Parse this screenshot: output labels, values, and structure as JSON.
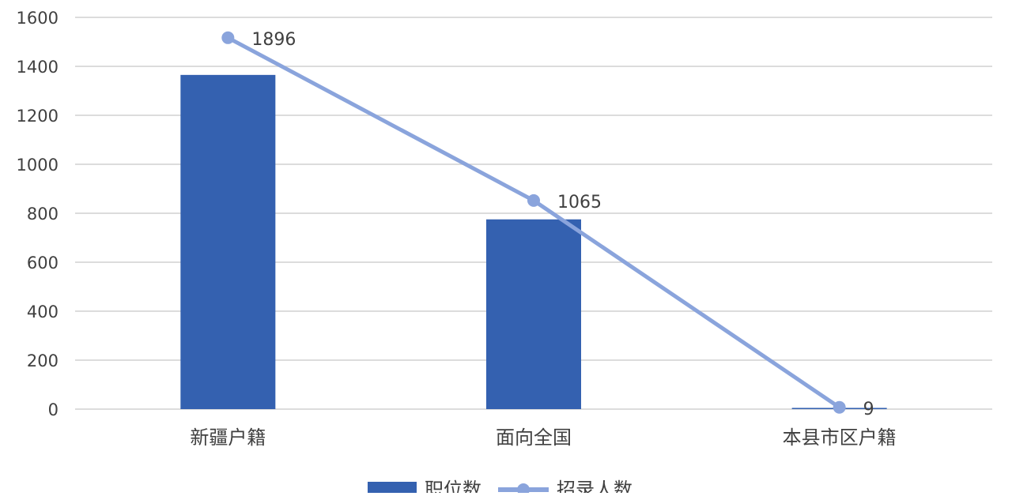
{
  "chart_data": {
    "type": "bar+line",
    "categories": [
      "新疆户籍",
      "面向全国",
      "本县市区户籍"
    ],
    "series": [
      {
        "name": "职位数",
        "type": "bar",
        "axis": "primary",
        "values": [
          1365,
          775,
          5
        ],
        "color": "#3461b0"
      },
      {
        "name": "招录人数",
        "type": "line",
        "axis": "secondary",
        "values": [
          1896,
          1065,
          9
        ],
        "data_labels": [
          "1896",
          "1065",
          "9"
        ],
        "color": "#8aa4dc"
      }
    ],
    "ylim": [
      0,
      1600
    ],
    "yticks": [
      "0",
      "200",
      "400",
      "600",
      "800",
      "1000",
      "1200",
      "1400",
      "1600"
    ],
    "y2lim": [
      0,
      2000
    ],
    "y2_axis_visible": false,
    "grid": true,
    "legend": "bottom",
    "title": "",
    "xlabel": "",
    "ylabel": ""
  }
}
